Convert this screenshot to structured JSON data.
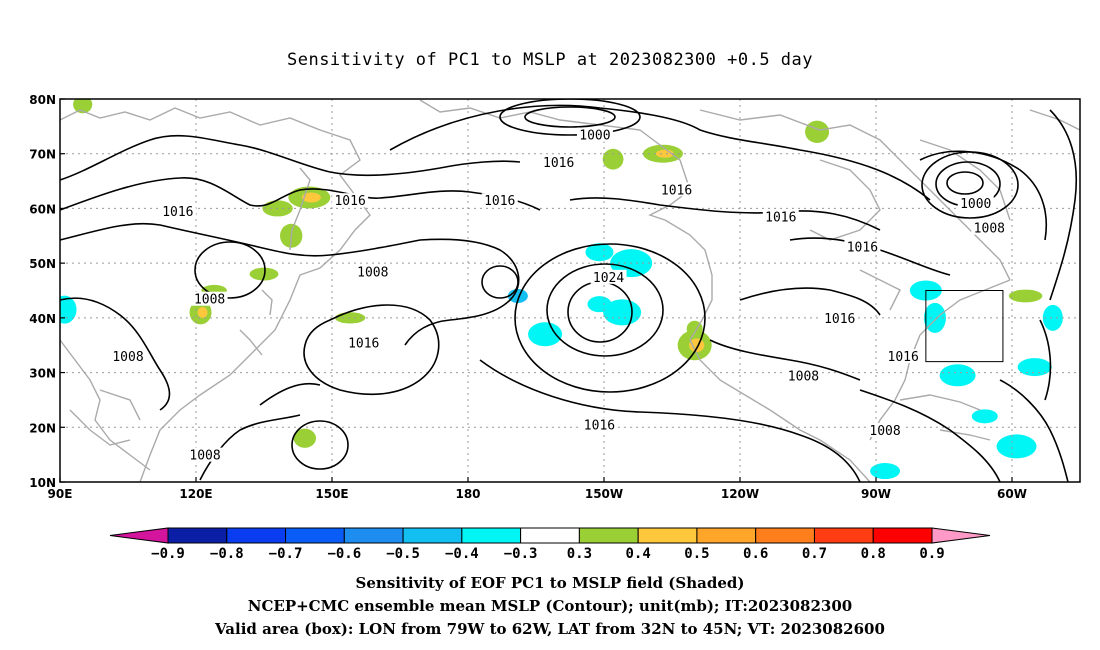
{
  "title": "Sensitivity of PC1 to MSLP at 2023082300 +0.5 day",
  "lat_labels": [
    "80N",
    "70N",
    "60N",
    "50N",
    "40N",
    "30N",
    "20N",
    "10N"
  ],
  "lon_labels": [
    "90E",
    "120E",
    "150E",
    "180",
    "150W",
    "120W",
    "90W",
    "60W"
  ],
  "contour_labels": [
    {
      "text": "1000",
      "lon": -152,
      "lat": 73.5
    },
    {
      "text": "1016",
      "lon": -160,
      "lat": 68.5
    },
    {
      "text": "1016",
      "lon": -134,
      "lat": 63.5
    },
    {
      "text": "1016",
      "lon": -111,
      "lat": 58.5
    },
    {
      "text": "1016",
      "lon": 116,
      "lat": 59.5
    },
    {
      "text": "1016",
      "lon": -173,
      "lat": 61.5
    },
    {
      "text": "1016",
      "lon": 154,
      "lat": 61.5
    },
    {
      "text": "1008",
      "lon": 159,
      "lat": 48.5
    },
    {
      "text": "1008",
      "lon": 123,
      "lat": 43.5
    },
    {
      "text": "1024",
      "lon": -149,
      "lat": 47.5
    },
    {
      "text": "1016",
      "lon": -98,
      "lat": 40
    },
    {
      "text": "1016",
      "lon": -93,
      "lat": 53
    },
    {
      "text": "1016",
      "lon": -84,
      "lat": 33
    },
    {
      "text": "1000",
      "lon": -68,
      "lat": 61
    },
    {
      "text": "1008",
      "lon": -65,
      "lat": 56.5
    },
    {
      "text": "1016",
      "lon": 157,
      "lat": 35.5
    },
    {
      "text": "1008",
      "lon": 105,
      "lat": 33
    },
    {
      "text": "1008",
      "lon": -106,
      "lat": 29.5
    },
    {
      "text": "1016",
      "lon": -151,
      "lat": 20.5
    },
    {
      "text": "1008",
      "lon": 122,
      "lat": 15
    },
    {
      "text": "1008",
      "lon": -88,
      "lat": 19.5
    }
  ],
  "shaded_regions": [
    {
      "lon": -169,
      "lat": 44,
      "level": -0.5
    },
    {
      "lon": -163,
      "lat": 37,
      "level": -0.4
    },
    {
      "lon": -151,
      "lat": 42.5,
      "level": -0.4
    },
    {
      "lon": -146,
      "lat": 41,
      "level": -0.4
    },
    {
      "lon": -151,
      "lat": 52,
      "level": -0.4
    },
    {
      "lon": -144,
      "lat": 50,
      "level": -0.4
    },
    {
      "lon": -79,
      "lat": 45,
      "level": -0.4
    },
    {
      "lon": -77,
      "lat": 40,
      "level": -0.4
    },
    {
      "lon": -72,
      "lat": 29.5,
      "level": -0.4
    },
    {
      "lon": -66,
      "lat": 22,
      "level": -0.4
    },
    {
      "lon": -59,
      "lat": 16.5,
      "level": -0.4
    },
    {
      "lon": -88,
      "lat": 12,
      "level": -0.4
    },
    {
      "lon": -51,
      "lat": 40,
      "level": -0.4
    },
    {
      "lon": -55,
      "lat": 31,
      "level": -0.4
    },
    {
      "lon": 91,
      "lat": 41.5,
      "level": -0.4
    },
    {
      "lon": 138,
      "lat": 60,
      "level": 0.3
    },
    {
      "lon": 141,
      "lat": 55,
      "level": 0.3
    },
    {
      "lon": 145,
      "lat": 62,
      "level": 0.4
    },
    {
      "lon": 124,
      "lat": 45,
      "level": 0.3
    },
    {
      "lon": 121,
      "lat": 41,
      "level": 0.4
    },
    {
      "lon": 135,
      "lat": 48,
      "level": 0.3
    },
    {
      "lon": -148,
      "lat": 69,
      "level": 0.3
    },
    {
      "lon": -137,
      "lat": 70,
      "level": 0.4
    },
    {
      "lon": -103,
      "lat": 74,
      "level": 0.3
    },
    {
      "lon": -130,
      "lat": 38,
      "level": 0.3
    },
    {
      "lon": -130,
      "lat": 35,
      "level": 0.4
    },
    {
      "lon": 95,
      "lat": 79,
      "level": 0.3
    },
    {
      "lon": 154,
      "lat": 40,
      "level": 0.3
    },
    {
      "lon": 144,
      "lat": 18,
      "level": 0.3
    },
    {
      "lon": -57,
      "lat": 44,
      "level": 0.3
    }
  ],
  "valid_box": {
    "lon_min": -79,
    "lon_max": -62,
    "lat_min": 32,
    "lat_max": 45
  },
  "colorbar": {
    "labels": [
      "-0.9",
      "-0.8",
      "-0.7",
      "-0.6",
      "-0.5",
      "-0.4",
      "-0.3",
      "0.3",
      "0.4",
      "0.5",
      "0.6",
      "0.7",
      "0.8",
      "0.9"
    ],
    "colors": [
      "#d3149d",
      "#0b1fa6",
      "#0a3cf0",
      "#0a5cf6",
      "#1e8df0",
      "#12bff0",
      "#00f5f5",
      "#ffffff",
      "#9ad036",
      "#ffc83c",
      "#ffa62a",
      "#ff7e1c",
      "#ff3c12",
      "#ff0000",
      "#ff9ac8"
    ]
  },
  "captions": [
    "Sensitivity of EOF PC1 to MSLP field (Shaded)",
    "NCEP+CMC ensemble mean MSLP (Contour); unit(mb); IT:2023082300",
    "Valid area (box): LON from 79W to 62W, LAT from 32N to 45N; VT: 2023082600"
  ]
}
